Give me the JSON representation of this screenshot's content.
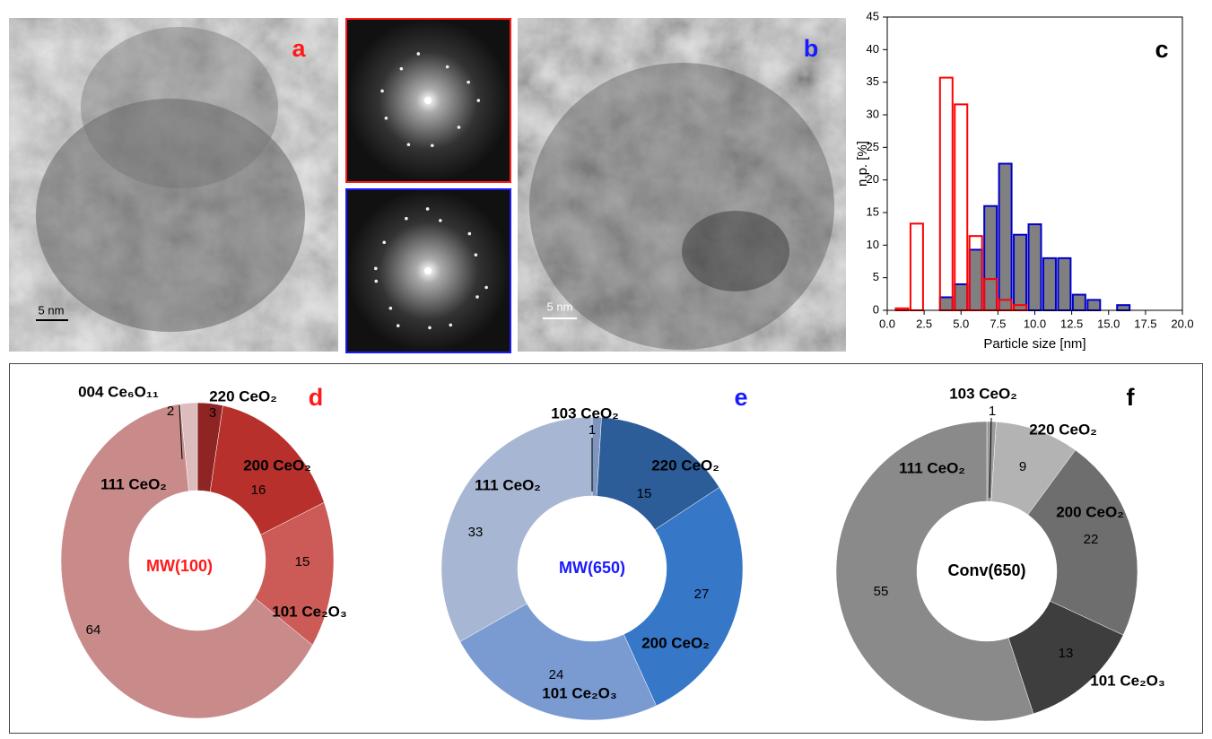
{
  "panels": {
    "a": {
      "label": "a",
      "color": "#ff1a1a",
      "scale_bar": "5 nm"
    },
    "b": {
      "label": "b",
      "color": "#1a1aff",
      "scale_bar": "5 nm"
    }
  },
  "chart_data": [
    {
      "type": "bar",
      "panel_label": "c",
      "panel_color": "#000000",
      "xlabel": "Particle size [nm]",
      "ylabel": "n.p. [%]",
      "xlim": [
        0,
        20
      ],
      "xticks": [
        {
          "value": 0,
          "label": "0.0"
        },
        2.5,
        {
          "value": 5,
          "label": "5.0"
        },
        7.5,
        {
          "value": 10,
          "label": "10.0"
        },
        12.5,
        {
          "value": 15,
          "label": "15.0"
        },
        17.5,
        {
          "value": 20,
          "label": "20.0"
        }
      ],
      "ylim": [
        0,
        45
      ],
      "yticks": [
        0,
        5,
        10,
        15,
        20,
        25,
        30,
        35,
        40,
        45
      ],
      "series": [
        {
          "color": "#0000cc",
          "fill": "#808080",
          "x": [
            4,
            5,
            6,
            7,
            8,
            9,
            10,
            11,
            12,
            13,
            14,
            16
          ],
          "values": [
            2,
            4,
            9.3,
            16,
            22.5,
            11.6,
            13.2,
            8,
            8,
            2.4,
            1.6,
            0.8
          ]
        },
        {
          "color": "#ff0000",
          "fill": "none",
          "x": [
            1,
            2,
            4,
            5,
            6,
            7,
            8,
            9
          ],
          "values": [
            0.3,
            13.3,
            35.7,
            31.6,
            11.4,
            4.8,
            1.6,
            0.8
          ]
        }
      ]
    },
    {
      "type": "donut",
      "panel_label": "d",
      "panel_color": "#ff1a1a",
      "center_label": "MW(100)",
      "center_color": "#ff1a1a",
      "categories": [
        "220 CeO₂",
        "200 CeO₂",
        "101 Ce₂O₃",
        "111 CeO₂",
        "004 Ce₆O₁₁"
      ],
      "values": [
        3,
        16,
        15,
        64,
        2
      ],
      "colors": [
        "#8e2424",
        "#b8302b",
        "#cc5a56",
        "#c98a8a",
        "#dcbcbc"
      ]
    },
    {
      "type": "donut",
      "panel_label": "e",
      "panel_color": "#1a1aff",
      "center_label": "MW(650)",
      "center_color": "#1a1aff",
      "categories": [
        "103 CeO₂",
        "220 CeO₂",
        "200 CeO₂",
        "101 Ce₂O₃",
        "111 CeO₂"
      ],
      "values": [
        1,
        15,
        27,
        24,
        33
      ],
      "colors": [
        "#7f95bd",
        "#2c5d99",
        "#3677c8",
        "#7a9bd2",
        "#a7b6d2"
      ]
    },
    {
      "type": "donut",
      "panel_label": "f",
      "panel_color": "#000000",
      "center_label": "Conv(650)",
      "center_color": "#000000",
      "categories": [
        "103 CeO₂",
        "220 CeO₂",
        "200 CeO₂",
        "101 Ce₂O₃",
        "111 CeO₂"
      ],
      "values": [
        1,
        9,
        22,
        13,
        55
      ],
      "colors": [
        "#9a9a9a",
        "#b3b3b3",
        "#6e6e6e",
        "#3e3e3e",
        "#8a8a8a"
      ]
    }
  ]
}
